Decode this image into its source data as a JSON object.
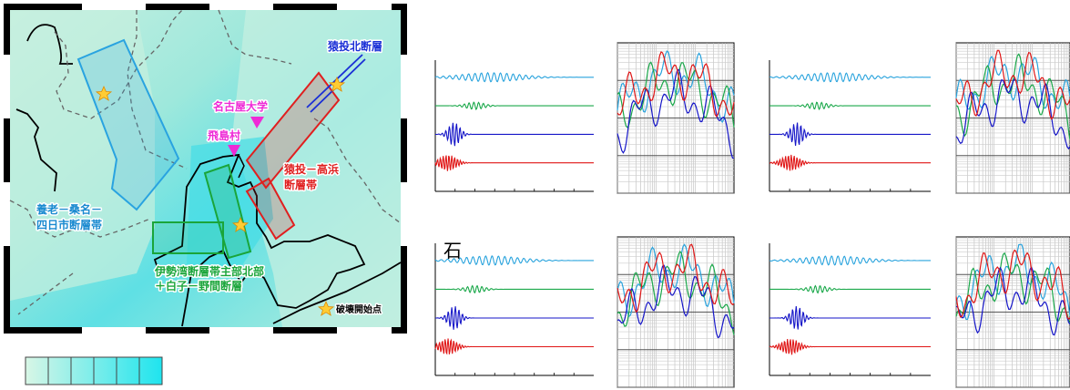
{
  "map": {
    "labels": {
      "sanage_kita": "猿投北断層",
      "nagoya_univ": "名古屋大学",
      "tobishima": "飛島村",
      "sanage_takahama_1": "猿投－高浜",
      "sanage_takahama_2": "断層帯",
      "yoro_1": "養老－桑名－",
      "yoro_2": "四日市断層帯",
      "isewan_1": "伊勢湾断層帯主部北部",
      "isewan_2": "＋白子－野間断層",
      "rupture_start": "破壊開始点"
    },
    "colors": {
      "sea": "#4fe0e6",
      "land": "#b8ead8",
      "yoro_fault": "#29a3e0",
      "isewan_fault": "#1aa53a",
      "sanage_takahama_fault": "#e01f1f",
      "sanage_kita_fault": "#1a2fd6",
      "nagoya_label": "#ee2ad6",
      "star": "#ffcc33"
    },
    "scale_bar": {
      "segments": 6
    }
  },
  "fragment_label": "石",
  "wave_colors": [
    "#29a3dd",
    "#1aa84a",
    "#1616c8",
    "#e01616"
  ],
  "waveform_panels": 4,
  "spectrum_panels": 4
}
